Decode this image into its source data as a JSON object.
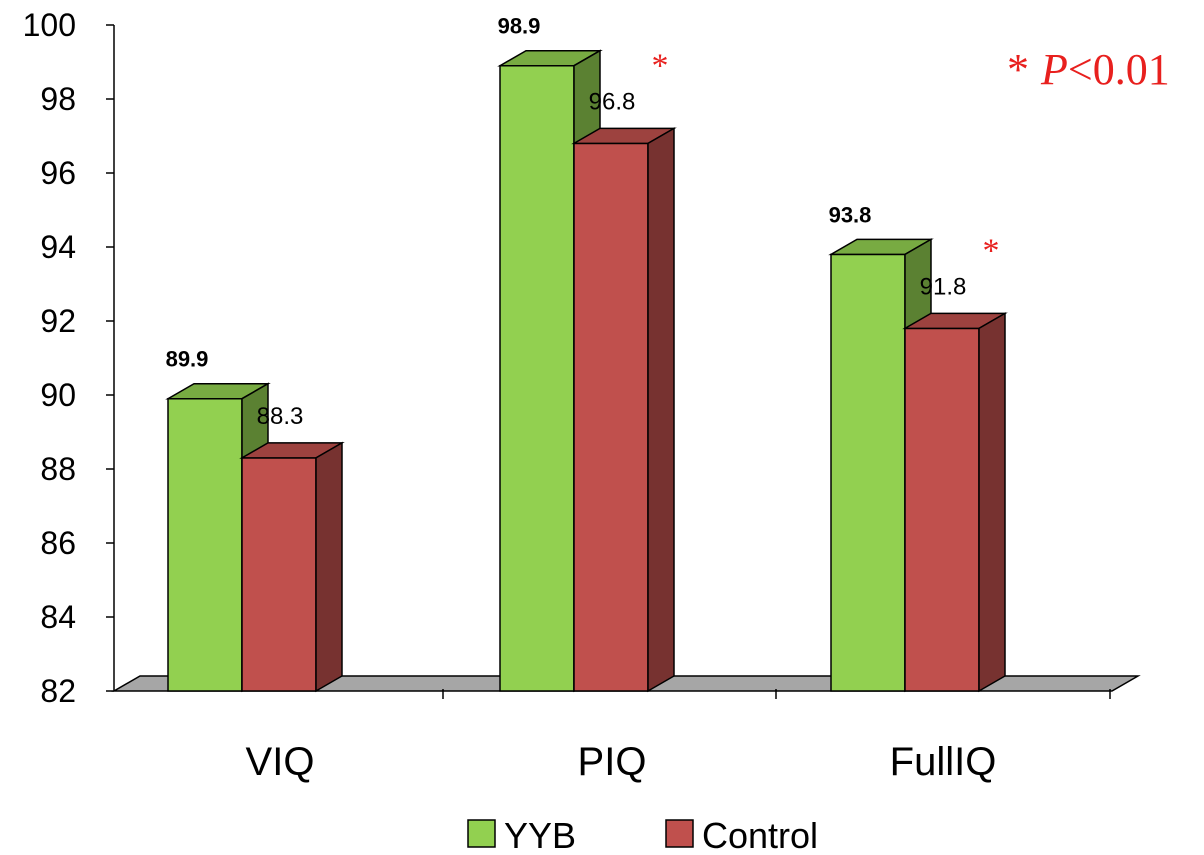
{
  "chart_data": {
    "type": "bar",
    "categories": [
      "VIQ",
      "PIQ",
      "FullIQ"
    ],
    "series": [
      {
        "name": "YYB",
        "values": [
          89.9,
          98.9,
          93.8
        ],
        "color": "#92d050",
        "label_style": "bold"
      },
      {
        "name": "Control",
        "values": [
          88.3,
          96.8,
          91.8
        ],
        "color": "#c0504d",
        "label_style": "normal"
      }
    ],
    "data_labels": [
      [
        "89.9",
        "98.9",
        "93.8"
      ],
      [
        "88.3",
        "96.8",
        "91.8"
      ]
    ],
    "significance_markers": [
      "",
      "*",
      "*"
    ],
    "significance_note": {
      "star": "*",
      "p_symbol": "P",
      "text": "<0.01"
    },
    "ylim": [
      82,
      100
    ],
    "yticks": [
      82,
      84,
      86,
      88,
      90,
      92,
      94,
      96,
      98,
      100
    ],
    "legend_position": "bottom",
    "grid": false,
    "style": "3d-bar"
  }
}
